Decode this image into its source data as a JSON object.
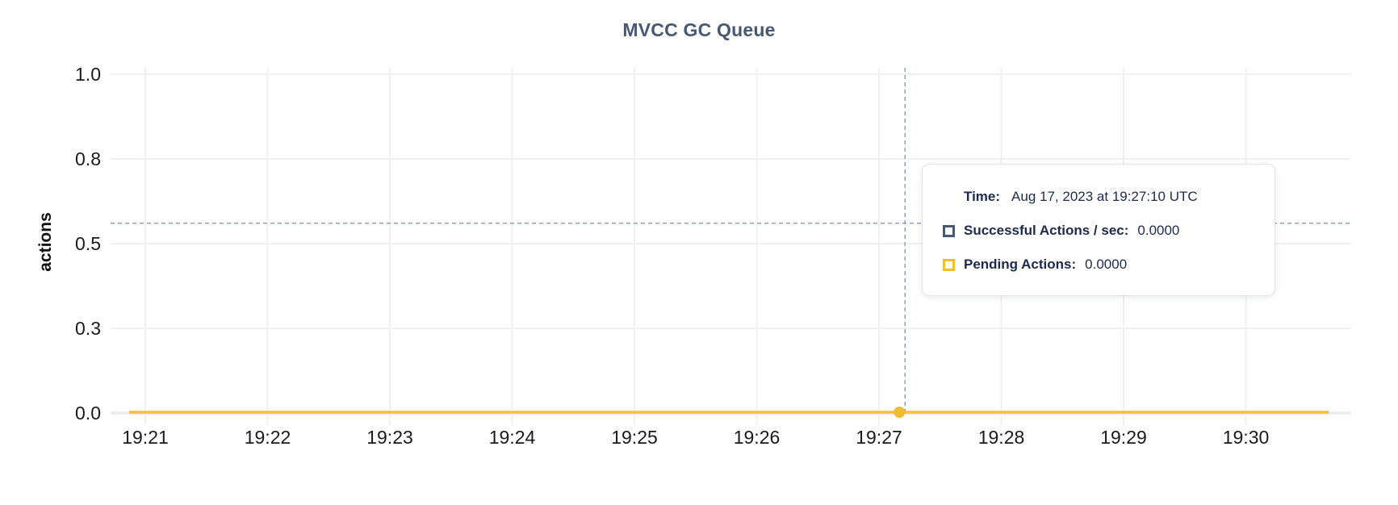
{
  "chart_data": {
    "type": "line",
    "title": "MVCC GC Queue",
    "ylabel": "actions",
    "x_tick_labels": [
      "19:21",
      "19:22",
      "19:23",
      "19:24",
      "19:25",
      "19:26",
      "19:27",
      "19:28",
      "19:29",
      "19:30"
    ],
    "y_tick_labels": [
      "0.0",
      "0.3",
      "0.5",
      "0.8",
      "1.0"
    ],
    "y_tick_values": [
      0,
      0.25,
      0.5,
      0.75,
      1.0
    ],
    "ylim": [
      0,
      1.07
    ],
    "grid": true,
    "legend_position": "tooltip-only",
    "series": [
      {
        "name": "Successful Actions / sec",
        "color": "#475872",
        "constant_value": 0.0
      },
      {
        "name": "Pending Actions",
        "color": "#f2be2c",
        "constant_value": 0.0
      }
    ],
    "hover_point": {
      "x_minutes_after_first_tick": 6.1667,
      "y_value": 0.0,
      "crosshair_y_value": 0.56
    }
  },
  "tooltip": {
    "time_label": "Time:",
    "time_value": "Aug 17, 2023 at 19:27:10 UTC",
    "rows": [
      {
        "label": "Successful Actions / sec:",
        "value": "0.0000"
      },
      {
        "label": "Pending Actions:",
        "value": "0.0000"
      }
    ]
  },
  "colors": {
    "title": "#475872",
    "axis_text": "#1a1a1a",
    "gridline": "#f0f0f0",
    "zero_line": "#ececec",
    "tick_stub": "#e2e2e2",
    "line_pending": "#f3c037",
    "hover_dot": "#f0bd31",
    "legend_successful": "#475872",
    "legend_pending": "#f2be2c",
    "crosshair": "#92a1b7",
    "tooltip_text": "#1e2a4d",
    "background": "#ffffff"
  }
}
